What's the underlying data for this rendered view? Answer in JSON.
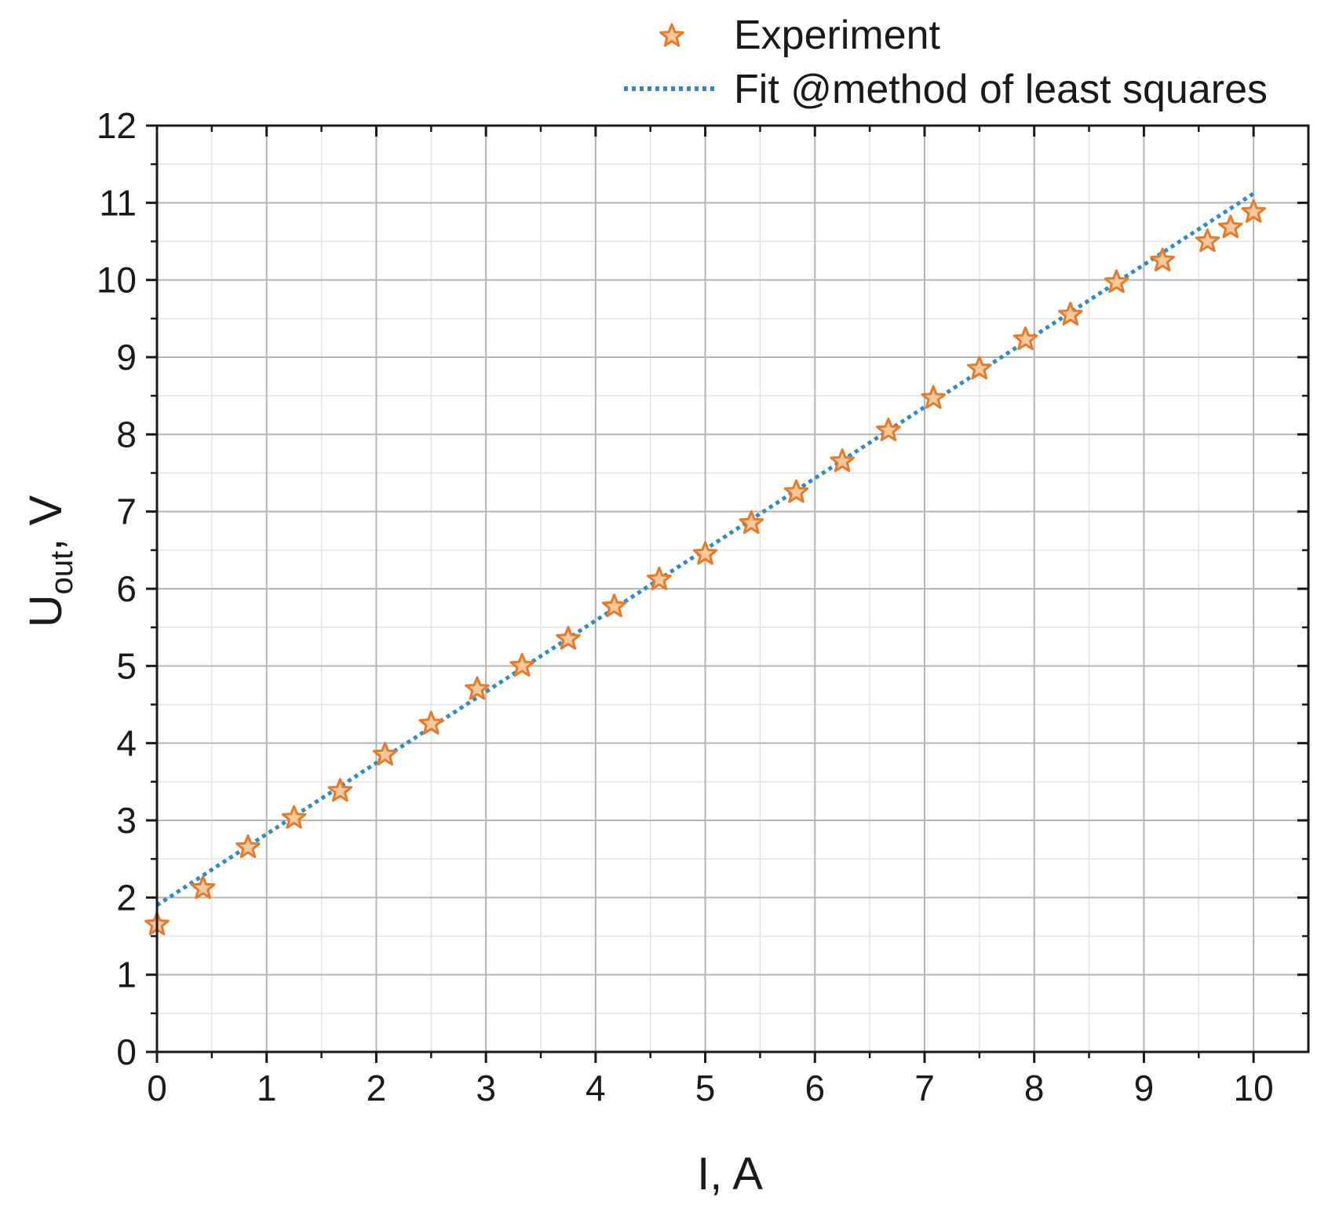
{
  "chart_data": {
    "type": "scatter",
    "xlabel": "I, A",
    "ylabel_main": "U",
    "ylabel_sub": "out",
    "ylabel_tail": ", V",
    "xlim": [
      0,
      10.5
    ],
    "ylim": [
      0,
      12
    ],
    "x_ticks": [
      0,
      1,
      2,
      3,
      4,
      5,
      6,
      7,
      8,
      9,
      10
    ],
    "y_ticks": [
      0,
      1,
      2,
      3,
      4,
      5,
      6,
      7,
      8,
      9,
      10,
      11,
      12
    ],
    "grid": true,
    "legend_position": "top-right",
    "colors": {
      "marker_stroke": "#e8792b",
      "marker_fill": "#f6c89a",
      "fit_line": "#2e8bc9",
      "major_grid": "#b5b5b5",
      "minor_grid": "#e3e3e3",
      "axis": "#1a1a1a"
    },
    "series": [
      {
        "name": "Experiment",
        "kind": "markers",
        "marker": "star",
        "x": [
          0,
          0.42,
          0.83,
          1.25,
          1.67,
          2.08,
          2.5,
          2.92,
          3.33,
          3.75,
          4.17,
          4.58,
          5.0,
          5.42,
          5.83,
          6.25,
          6.67,
          7.08,
          7.5,
          7.92,
          8.33,
          8.75,
          9.17,
          9.58,
          9.79,
          10.0
        ],
        "y": [
          1.65,
          2.12,
          2.65,
          3.03,
          3.38,
          3.85,
          4.25,
          4.7,
          5.0,
          5.35,
          5.77,
          6.12,
          6.45,
          6.85,
          7.25,
          7.65,
          8.05,
          8.47,
          8.85,
          9.23,
          9.55,
          9.97,
          10.25,
          10.5,
          10.68,
          10.88
        ]
      },
      {
        "name": "Fit @method of least squares",
        "kind": "line",
        "style": "dotted",
        "x": [
          0,
          10.0
        ],
        "y": [
          1.9,
          11.12
        ]
      }
    ]
  }
}
